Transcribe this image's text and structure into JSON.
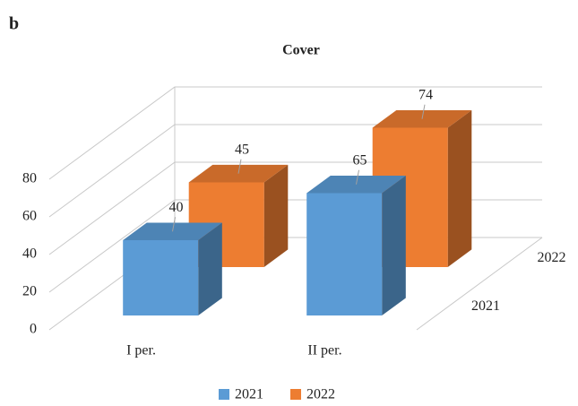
{
  "panel_label": "b",
  "chart_data": {
    "type": "bar3d",
    "title": "Cover",
    "categories": [
      "I per.",
      "II per."
    ],
    "series": [
      {
        "name": "2021",
        "color": "#5b9bd5",
        "values": [
          40,
          65
        ]
      },
      {
        "name": "2022",
        "color": "#ed7d31",
        "values": [
          45,
          74
        ]
      }
    ],
    "ylim": [
      0,
      80
    ],
    "yticks": [
      0,
      20,
      40,
      60,
      80
    ],
    "grid": true,
    "legend": "bottom"
  }
}
